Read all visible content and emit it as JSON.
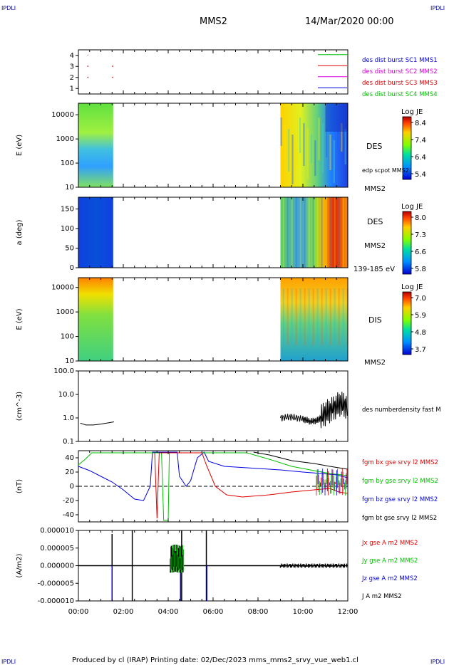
{
  "corner_label": "IPDLI",
  "header": {
    "spacecraft": "MMS2",
    "date": "14/Mar/2020 00:00"
  },
  "footer": {
    "text": "Produced by cl (IRAP)   Printing date: 02/Dec/2023   mms_mms2_srvy_vue_web1.cl"
  },
  "colors": {
    "red": "#e00000",
    "green": "#00c000",
    "blue": "#0000e0",
    "magenta": "#e000e0",
    "black": "#000000",
    "dark_blue": "#000080"
  },
  "chart_data": [
    {
      "type": "line",
      "panel": "burst-indicator",
      "xlim": [
        "00:00",
        "12:00"
      ],
      "ylim": [
        0.5,
        4.5
      ],
      "yticks": [
        "1",
        "2",
        "3",
        "4"
      ],
      "legend": [
        {
          "label": "des dist burst SC1 MMS1",
          "color": "#0000e0"
        },
        {
          "label": "des dist burst SC2 MMS2",
          "color": "#e000e0"
        },
        {
          "label": "des dist burst SC3 MMS3",
          "color": "#e00000"
        },
        {
          "label": "des dist burst SC4 MMS4",
          "color": "#00c000"
        }
      ]
    },
    {
      "type": "heatmap",
      "panel": "des-energy-spectrogram",
      "ylabel": "E (eV)",
      "yscale": "log",
      "ylim": [
        10,
        30000
      ],
      "yticks": [
        "10",
        "100",
        "1000",
        "10000"
      ],
      "colorbar": {
        "title": "Log JE",
        "ticks": [
          "8.4",
          "7.4",
          "6.4",
          "5.4"
        ],
        "range": [
          5.4,
          8.4
        ]
      },
      "labels": [
        "DES",
        "edp scpot MMS2",
        "MMS2"
      ]
    },
    {
      "type": "heatmap",
      "panel": "des-pitch-angle",
      "ylabel": "a (deg)",
      "ylim": [
        0,
        180
      ],
      "yticks": [
        "0",
        "50",
        "100",
        "150"
      ],
      "colorbar": {
        "title": "Log JE",
        "ticks": [
          "8.0",
          "7.3",
          "6.6",
          "5.8"
        ],
        "range": [
          5.8,
          8.0
        ]
      },
      "labels": [
        "DES",
        "MMS2",
        "139-185 eV"
      ]
    },
    {
      "type": "heatmap",
      "panel": "dis-energy-spectrogram",
      "ylabel": "E (eV)",
      "yscale": "log",
      "ylim": [
        10,
        25000
      ],
      "yticks": [
        "10",
        "100",
        "1000",
        "10000"
      ],
      "colorbar": {
        "title": "Log JE",
        "ticks": [
          "7.0",
          "5.9",
          "4.8",
          "3.7"
        ],
        "range": [
          3.7,
          7.0
        ]
      },
      "labels": [
        "DIS",
        "MMS2"
      ]
    },
    {
      "type": "line",
      "panel": "electron-density",
      "ylabel": "(cm^-3)",
      "yscale": "log",
      "ylim": [
        0.1,
        100
      ],
      "yticks": [
        "0.1",
        "1.0",
        "10.0",
        "100.0"
      ],
      "series": [
        {
          "name": "des numberdensity fast M",
          "color": "#000000",
          "x": [
            "00:05",
            "00:20",
            "00:40",
            "01:00",
            "01:20",
            "01:35"
          ],
          "values": [
            0.6,
            0.5,
            0.5,
            0.55,
            0.62,
            0.68
          ],
          "x2": [
            "09:00",
            "09:30",
            "10:00",
            "10:20",
            "10:40",
            "11:00",
            "11:20",
            "11:40",
            "12:00"
          ],
          "values2": [
            1.0,
            1.1,
            0.9,
            0.7,
            0.8,
            1.5,
            2.5,
            4.0,
            3.0
          ]
        }
      ]
    },
    {
      "type": "line",
      "panel": "magnetic-field",
      "ylabel": "(nT)",
      "ylim": [
        -50,
        50
      ],
      "yticks": [
        "-40",
        "-20",
        "0",
        "20",
        "40"
      ],
      "series": [
        {
          "name": "fgm bx gse srvy l2 MMS2",
          "color": "#e00000"
        },
        {
          "name": "fgm by gse srvy l2 MMS2",
          "color": "#00c000"
        },
        {
          "name": "fgm bz gse srvy l2 MMS2",
          "color": "#0000e0"
        },
        {
          "name": "fgm bt gse srvy l2 MMS2",
          "color": "#000000"
        }
      ]
    },
    {
      "type": "line",
      "panel": "current-density",
      "ylabel": "(A/m2)",
      "ylim": [
        -1e-05,
        1e-05
      ],
      "yticks": [
        "-0.000010",
        "-0.000005",
        "0.000000",
        "0.000005",
        "0.000010"
      ],
      "xticks": [
        "00:00",
        "02:00",
        "04:00",
        "06:00",
        "08:00",
        "10:00",
        "12:00"
      ],
      "series": [
        {
          "name": "Jx gse A m2 MMS2",
          "color": "#e00000"
        },
        {
          "name": "Jy gse A m2 MMS2",
          "color": "#00c000"
        },
        {
          "name": "Jz gse A m2 MMS2",
          "color": "#0000e0"
        },
        {
          "name": "J A m2 MMS2",
          "color": "#000000"
        }
      ]
    }
  ]
}
